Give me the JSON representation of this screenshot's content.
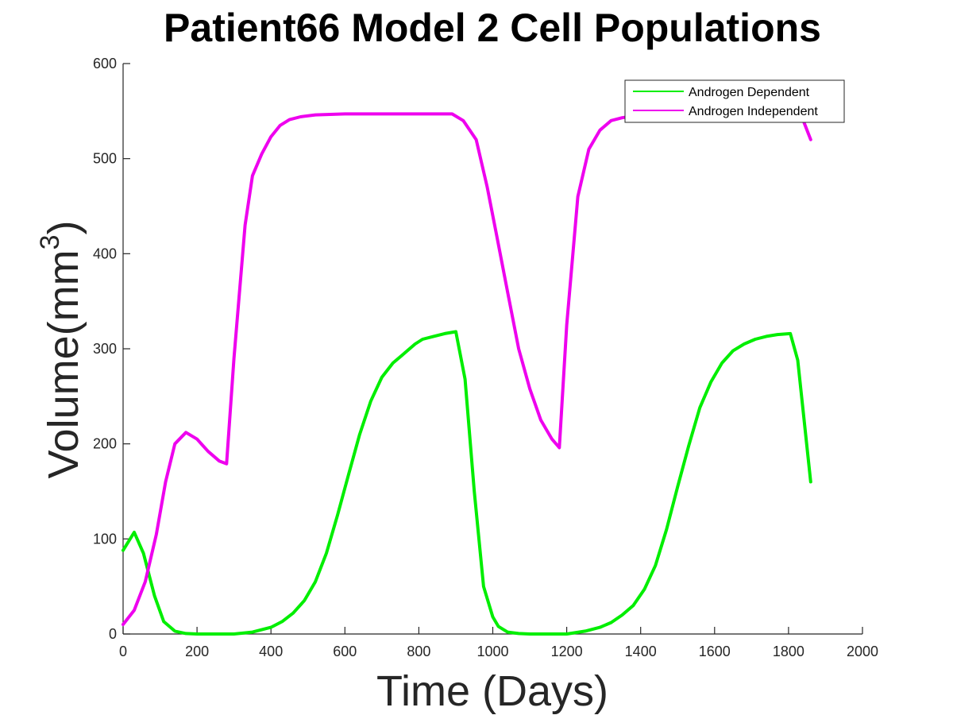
{
  "chart_data": {
    "type": "line",
    "title": "Patient66 Model 2 Cell Populations",
    "xlabel": "Time (Days)",
    "ylabel_base": "Volume(mm",
    "ylabel_sup": "3",
    "ylabel_close": ")",
    "xlim": [
      0,
      2000
    ],
    "ylim": [
      0,
      600
    ],
    "x_ticks": [
      0,
      200,
      400,
      600,
      800,
      1000,
      1200,
      1400,
      1600,
      1800,
      2000
    ],
    "y_ticks": [
      0,
      100,
      200,
      300,
      400,
      500,
      600
    ],
    "grid": false,
    "legend_position": "top-right",
    "series": [
      {
        "name": "Androgen Dependent",
        "color": "#00ee00",
        "x": [
          0,
          30,
          55,
          85,
          110,
          140,
          170,
          200,
          250,
          300,
          350,
          400,
          430,
          460,
          490,
          520,
          550,
          580,
          610,
          640,
          670,
          700,
          730,
          760,
          790,
          810,
          840,
          870,
          900,
          925,
          950,
          975,
          1000,
          1015,
          1040,
          1070,
          1100,
          1150,
          1200,
          1250,
          1290,
          1320,
          1350,
          1380,
          1410,
          1440,
          1470,
          1500,
          1530,
          1560,
          1590,
          1620,
          1650,
          1680,
          1710,
          1740,
          1770,
          1805,
          1825,
          1860
        ],
        "values": [
          88,
          107,
          85,
          40,
          13,
          3,
          0.5,
          0,
          0,
          0,
          2,
          7,
          13,
          22,
          35,
          55,
          85,
          125,
          168,
          210,
          245,
          270,
          285,
          295,
          305,
          310,
          313,
          316,
          318,
          268,
          150,
          50,
          18,
          8,
          2,
          0.5,
          0,
          0,
          0,
          3,
          7,
          12,
          20,
          30,
          47,
          72,
          110,
          155,
          198,
          238,
          265,
          285,
          298,
          305,
          310,
          313,
          315,
          316,
          288,
          160
        ]
      },
      {
        "name": "Androgen Independent",
        "color": "#ee00ee",
        "x": [
          0,
          30,
          60,
          90,
          115,
          140,
          170,
          200,
          230,
          260,
          280,
          300,
          330,
          350,
          375,
          400,
          425,
          450,
          480,
          520,
          600,
          700,
          800,
          890,
          920,
          955,
          985,
          1010,
          1040,
          1070,
          1100,
          1130,
          1160,
          1180,
          1200,
          1230,
          1260,
          1290,
          1320,
          1350,
          1400,
          1500,
          1600,
          1700,
          1800,
          1840,
          1860
        ],
        "values": [
          10,
          25,
          55,
          105,
          160,
          200,
          212,
          205,
          192,
          182,
          179,
          290,
          430,
          482,
          505,
          523,
          535,
          541,
          544,
          546,
          547,
          547,
          547,
          547,
          540,
          520,
          470,
          420,
          360,
          300,
          258,
          225,
          205,
          196,
          325,
          460,
          510,
          530,
          540,
          543,
          546,
          547,
          547,
          547,
          547,
          540,
          520
        ]
      }
    ]
  }
}
